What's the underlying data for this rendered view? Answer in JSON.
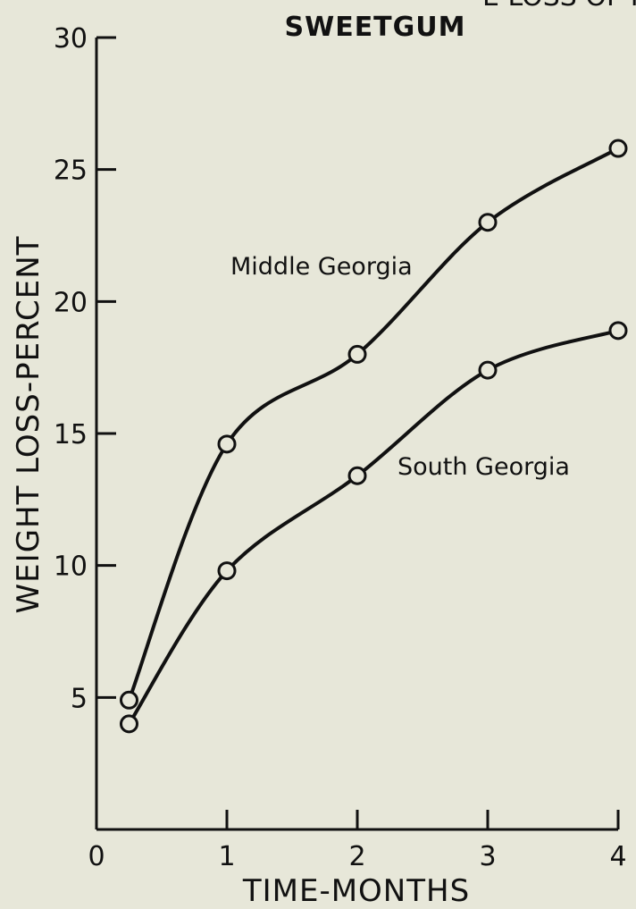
{
  "chart_data": {
    "type": "line",
    "title": "SWEETGUM",
    "title_cropped_text": "E LOSS OF P",
    "xlabel": "TIME-MONTHS",
    "ylabel": "WEIGHT LOSS-PERCENT",
    "xlim": [
      0,
      4
    ],
    "ylim": [
      0,
      30
    ],
    "x_ticks": [
      0,
      1,
      2,
      3,
      4
    ],
    "y_ticks": [
      5,
      10,
      15,
      20,
      25,
      30
    ],
    "grid": false,
    "series": [
      {
        "name": "Middle Georgia",
        "x": [
          0.25,
          1,
          2,
          3,
          4
        ],
        "y": [
          4.9,
          14.6,
          18.0,
          23.0,
          25.8
        ]
      },
      {
        "name": "South Georgia",
        "x": [
          0.25,
          1,
          2,
          3,
          4
        ],
        "y": [
          4.0,
          9.8,
          13.4,
          17.4,
          18.9
        ]
      }
    ]
  }
}
